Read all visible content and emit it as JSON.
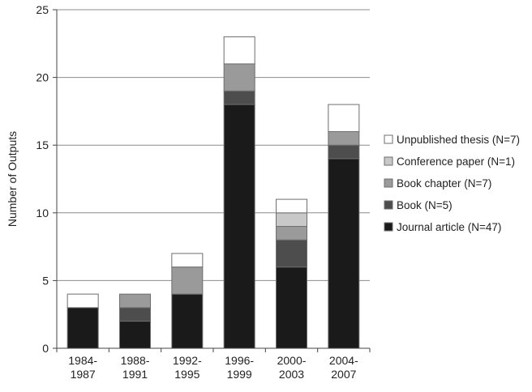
{
  "chart_data": {
    "type": "bar",
    "stacked": true,
    "ylabel": "Number of Outputs",
    "ylim": [
      0,
      25
    ],
    "yticks": [
      0,
      5,
      10,
      15,
      20,
      25
    ],
    "grid": true,
    "legend_position": "right",
    "categories": [
      [
        "1984-",
        "1987"
      ],
      [
        "1988-",
        "1991"
      ],
      [
        "1992-",
        "1995"
      ],
      [
        "1996-",
        "1999"
      ],
      [
        "2000-",
        "2003"
      ],
      [
        "2004-",
        "2007"
      ]
    ],
    "series": [
      {
        "name": "Journal article (N=47)",
        "color": "#1a1a1a",
        "values": [
          3,
          2,
          4,
          18,
          6,
          14
        ]
      },
      {
        "name": "Book (N=5)",
        "color": "#4d4d4d",
        "values": [
          0,
          1,
          0,
          1,
          2,
          1
        ]
      },
      {
        "name": "Book chapter (N=7)",
        "color": "#9a9a9a",
        "values": [
          0,
          1,
          2,
          2,
          1,
          1
        ]
      },
      {
        "name": "Conference paper (N=1)",
        "color": "#c8c8c8",
        "values": [
          0,
          0,
          0,
          0,
          1,
          0
        ]
      },
      {
        "name": "Unpublished thesis (N=7)",
        "color": "#ffffff",
        "values": [
          1,
          0,
          1,
          2,
          1,
          2
        ]
      }
    ]
  }
}
